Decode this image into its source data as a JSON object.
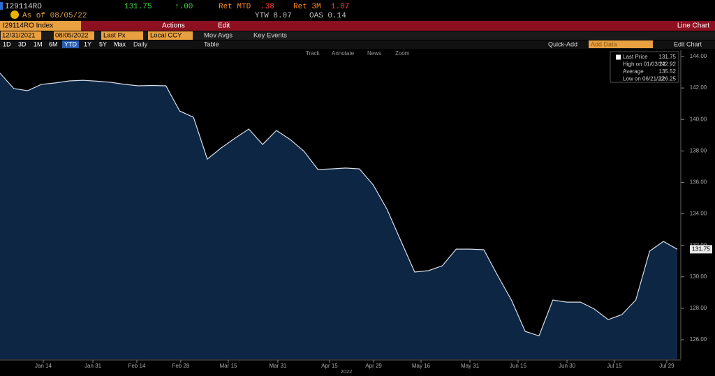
{
  "header": {
    "ticker": "I29114RO",
    "price": "131.75",
    "change": "↑.00",
    "ret_mtd_label": "Ret MTD",
    "ret_mtd": ".38",
    "ret_3m_label": "Ret 3M",
    "ret_3m": "1.87",
    "as_of": "As of 08/05/22",
    "ytw": "YTW 8.07",
    "oas": "OAS 0.14"
  },
  "menu": {
    "security": "I29114RO Index",
    "actions": "Actions",
    "edit": "Edit",
    "view": "Line Chart"
  },
  "toolbar": {
    "start": "12/31/2021",
    "end": "08/05/2022",
    "field": "Last Px",
    "currency": "Local CCY",
    "mov_avgs": "Mov Avgs",
    "key_events": "Key Events",
    "ranges": [
      "1D",
      "3D",
      "1M",
      "6M",
      "YTD",
      "1Y",
      "5Y",
      "Max"
    ],
    "frequency": "Daily",
    "table": "Table",
    "quick_add": "Quick-Add",
    "add_data": "Add Data",
    "edit_chart": "Edit Chart",
    "tools": [
      "Track",
      "Annotate",
      "News",
      "Zoom"
    ]
  },
  "chart_data": {
    "type": "area",
    "color": "#0d2644",
    "line_color": "#d6dde8",
    "values": [
      142.94,
      141.96,
      141.83,
      142.23,
      142.32,
      142.45,
      142.49,
      142.43,
      142.36,
      142.23,
      142.14,
      142.16,
      142.14,
      140.54,
      140.14,
      137.48,
      138.19,
      138.81,
      139.39,
      138.41,
      139.3,
      138.72,
      137.97,
      136.82,
      136.86,
      136.91,
      136.86,
      135.84,
      134.29,
      132.29,
      130.3,
      130.39,
      130.7,
      131.76,
      131.76,
      131.72,
      130.08,
      128.53,
      126.53,
      126.25,
      128.53,
      128.39,
      128.39,
      127.95,
      127.28,
      127.6,
      128.53,
      131.63,
      132.25,
      131.75
    ],
    "xlim": [
      0,
      49
    ],
    "xticks": [
      {
        "value": 3.13,
        "label": "Jan 14"
      },
      {
        "value": 6.72,
        "label": "Jan 31"
      },
      {
        "value": 9.9,
        "label": "Feb 14"
      },
      {
        "value": 13.08,
        "label": "Feb 28"
      },
      {
        "value": 16.52,
        "label": "Mar 15"
      },
      {
        "value": 20.1,
        "label": "Mar 31"
      },
      {
        "value": 23.84,
        "label": "Apr 15"
      },
      {
        "value": 27.03,
        "label": "Apr 29"
      },
      {
        "value": 30.46,
        "label": "May 16"
      },
      {
        "value": 34,
        "label": "May 31"
      },
      {
        "value": 37.48,
        "label": "Jun 15"
      },
      {
        "value": 41.02,
        "label": "Jun 30"
      },
      {
        "value": 44.45,
        "label": "Jul 15"
      },
      {
        "value": 48.24,
        "label": "Jul 29"
      }
    ],
    "xlabel": "2022",
    "ylim": [
      124.76,
      144.4
    ],
    "yticks": [
      {
        "value": 126,
        "label": "126.00"
      },
      {
        "value": 128,
        "label": "128.00"
      },
      {
        "value": 130,
        "label": "130.00"
      },
      {
        "value": 132,
        "label": "132.00"
      },
      {
        "value": 134,
        "label": "134.00"
      },
      {
        "value": 136,
        "label": "136.00"
      },
      {
        "value": 138,
        "label": "138.00"
      },
      {
        "value": 140,
        "label": "140.00"
      },
      {
        "value": 142,
        "label": "142.00"
      },
      {
        "value": 144,
        "label": "144.00"
      }
    ],
    "last_label": "131.75",
    "legend": [
      {
        "label": "Last Price",
        "value": "131.75"
      },
      {
        "label": "High on 01/03/22",
        "value": "142.92"
      },
      {
        "label": "Average",
        "value": "135.52"
      },
      {
        "label": "Low on 06/21/22",
        "value": "126.25"
      }
    ]
  }
}
